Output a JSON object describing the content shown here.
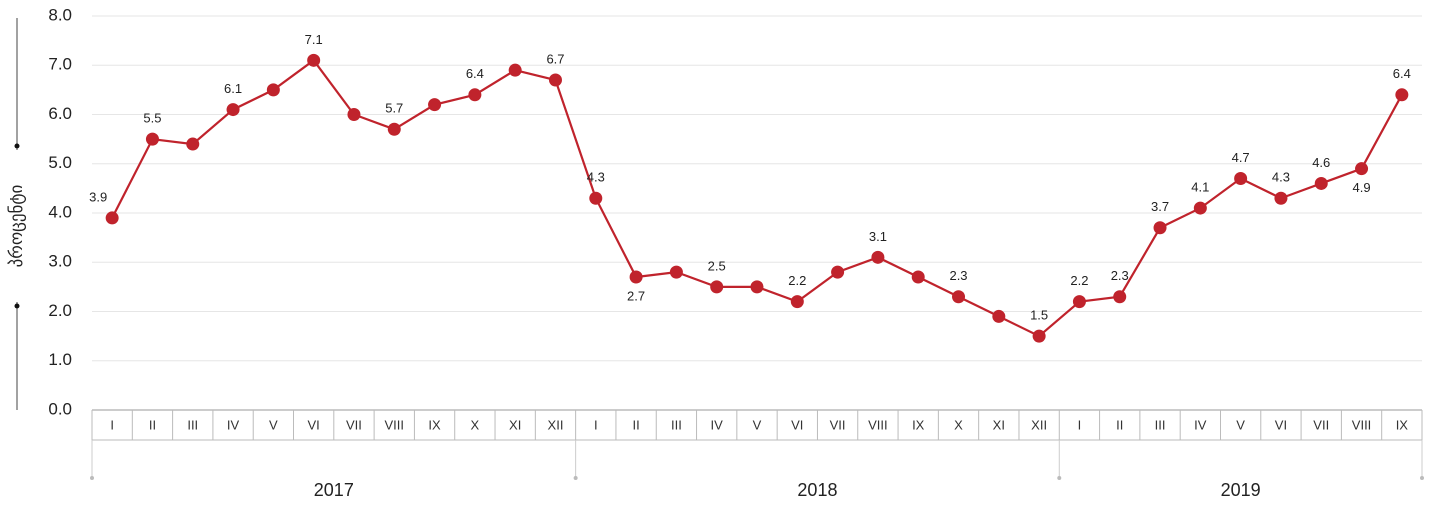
{
  "chart_data": {
    "type": "line",
    "y_label": "პროცენტი",
    "categories": [
      "I",
      "II",
      "III",
      "IV",
      "V",
      "VI",
      "VII",
      "VIII",
      "IX",
      "X",
      "XI",
      "XII",
      "I",
      "II",
      "III",
      "IV",
      "V",
      "VI",
      "VII",
      "VIII",
      "IX",
      "X",
      "XI",
      "XII",
      "I",
      "II",
      "III",
      "IV",
      "V",
      "VI",
      "VII",
      "VIII",
      "IX"
    ],
    "x_groups": [
      "2017",
      "2018",
      "2019"
    ],
    "series": [
      {
        "color": "#c0232c",
        "values": [
          3.9,
          5.5,
          5.4,
          6.1,
          6.5,
          7.1,
          6.0,
          5.7,
          6.2,
          6.4,
          6.9,
          6.7,
          4.3,
          2.7,
          2.8,
          2.5,
          2.5,
          2.2,
          2.8,
          3.1,
          2.7,
          2.3,
          1.9,
          1.5,
          2.2,
          2.3,
          3.7,
          4.1,
          4.7,
          4.3,
          4.6,
          4.9,
          6.4
        ],
        "value_labels": [
          "3.9",
          "5.5",
          null,
          "6.1",
          null,
          "7.1",
          null,
          "5.7",
          null,
          "6.4",
          null,
          "6.7",
          "4.3",
          "2.7",
          null,
          "2.5",
          null,
          "2.2",
          null,
          "3.1",
          null,
          "2.3",
          null,
          "1.5",
          "2.2",
          "2.3",
          "3.7",
          "4.1",
          "4.7",
          "4.3",
          "4.6",
          "4.9",
          "6.4"
        ]
      }
    ],
    "ylim": [
      0,
      8
    ],
    "yticks": [
      {
        "value": 0,
        "label": "0.0"
      },
      {
        "value": 1,
        "label": "1.0"
      },
      {
        "value": 2,
        "label": "2.0"
      },
      {
        "value": 3,
        "label": "3.0"
      },
      {
        "value": 4,
        "label": "4.0"
      },
      {
        "value": 5,
        "label": "5.0"
      },
      {
        "value": 6,
        "label": "6.0"
      },
      {
        "value": 7,
        "label": "7.0"
      },
      {
        "value": 8,
        "label": "8.0"
      }
    ],
    "grid": true
  }
}
